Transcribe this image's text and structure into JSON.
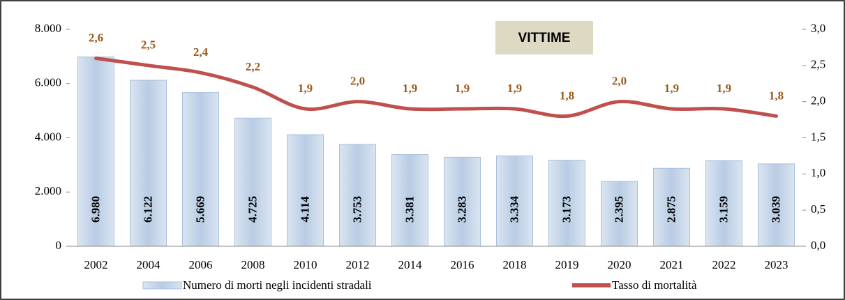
{
  "chart_data": {
    "type": "bar",
    "annotation": "VITTIME",
    "categories": [
      "2002",
      "2004",
      "2006",
      "2008",
      "2010",
      "2012",
      "2014",
      "2016",
      "2018",
      "2019",
      "2020",
      "2021",
      "2022",
      "2023"
    ],
    "series": [
      {
        "name": "Numero di morti negli incidenti stradali",
        "type": "bar",
        "color": "#b8cce4",
        "values": [
          6980,
          6122,
          5669,
          4725,
          4114,
          3753,
          3381,
          3283,
          3334,
          3173,
          2395,
          2875,
          3159,
          3039
        ],
        "value_labels": [
          "6.980",
          "6.122",
          "5.669",
          "4.725",
          "4.114",
          "3.753",
          "3.381",
          "3.283",
          "3.334",
          "3.173",
          "2.395",
          "2.875",
          "3.159",
          "3.039"
        ]
      },
      {
        "name": "Tasso di mortalità",
        "type": "line",
        "axis": "y2",
        "color": "#c0504d",
        "values": [
          2.6,
          2.5,
          2.4,
          2.2,
          1.9,
          2.0,
          1.9,
          1.9,
          1.9,
          1.8,
          2.0,
          1.9,
          1.9,
          1.8
        ],
        "value_labels": [
          "2,6",
          "2,5",
          "2,4",
          "2,2",
          "1,9",
          "2,0",
          "1,9",
          "1,9",
          "1,9",
          "1,8",
          "2,0",
          "1,9",
          "1,9",
          "1,8"
        ]
      }
    ],
    "ylim": [
      0,
      8000
    ],
    "yticks": [
      0,
      {
        "value": 2000,
        "label": "2.000"
      },
      {
        "value": 4000,
        "label": "4.000"
      },
      {
        "value": 6000,
        "label": "6.000"
      },
      {
        "value": 8000,
        "label": "8.000"
      }
    ],
    "y2lim": [
      0,
      3
    ],
    "y2ticks": [
      {
        "value": 0,
        "label": "0,0"
      },
      {
        "value": 0.5,
        "label": "0,5"
      },
      {
        "value": 1,
        "label": "1,0"
      },
      {
        "value": 1.5,
        "label": "1,5"
      },
      {
        "value": 2,
        "label": "2,0"
      },
      {
        "value": 2.5,
        "label": "2,5"
      },
      {
        "value": 3,
        "label": "3,0"
      }
    ]
  }
}
